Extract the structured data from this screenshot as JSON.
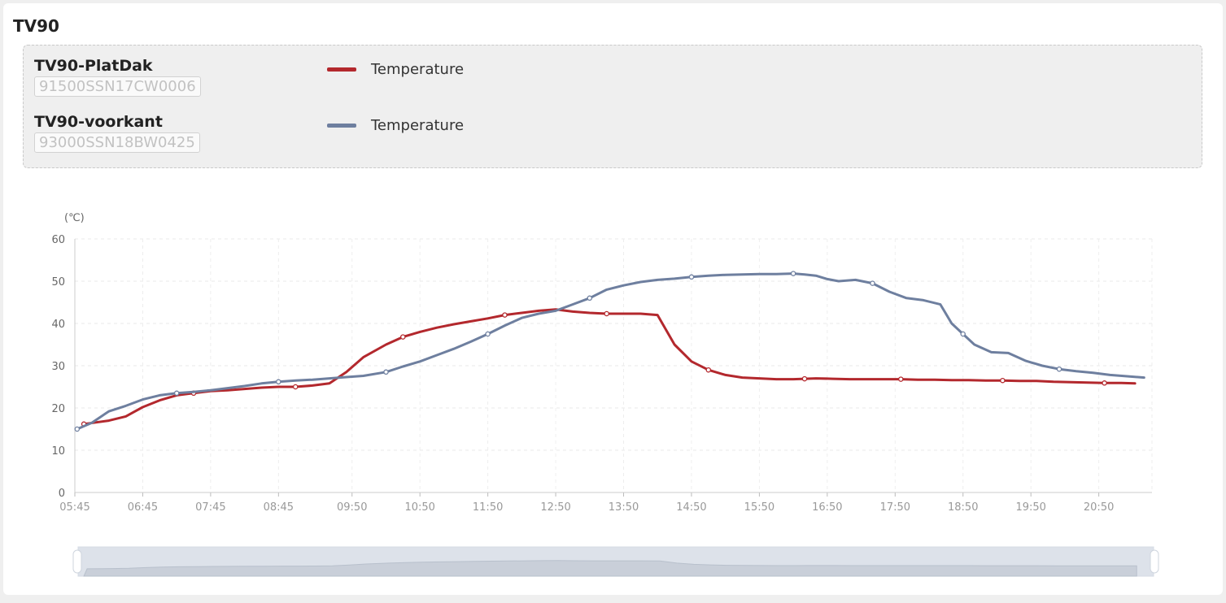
{
  "card": {
    "title": "TV90"
  },
  "devices": [
    {
      "name": "TV90-PlatDak",
      "serial": "91500SSN17CW0006",
      "legend_label": "Temperature",
      "color": "#b3282d"
    },
    {
      "name": "TV90-voorkant",
      "serial": "93000SSN18BW0425",
      "legend_label": "Temperature",
      "color": "#6e7f9f"
    }
  ],
  "chart_data": {
    "type": "line",
    "ylabel": "(℃)",
    "ylim": [
      0,
      60
    ],
    "yticks": [
      0,
      10,
      20,
      30,
      40,
      50,
      60
    ],
    "x_tick_labels": [
      "05:45",
      "06:45",
      "07:45",
      "08:45",
      "09:50",
      "10:50",
      "11:50",
      "12:50",
      "13:50",
      "14:50",
      "15:50",
      "16:50",
      "17:50",
      "18:50",
      "19:50",
      "20:50"
    ],
    "grid": true,
    "x_unit": "minutes since 00:00",
    "xlim": [
      345,
      1297
    ],
    "series": [
      {
        "name": "TV90-PlatDak Temperature",
        "color": "#b3282d",
        "x": [
          353,
          375,
          390,
          405,
          420,
          435,
          450,
          465,
          480,
          495,
          510,
          525,
          540,
          555,
          570,
          585,
          600,
          620,
          635,
          650,
          665,
          680,
          695,
          710,
          725,
          740,
          755,
          770,
          785,
          800,
          815,
          830,
          845,
          860,
          875,
          890,
          905,
          920,
          935,
          950,
          965,
          980,
          990,
          1000,
          1015,
          1030,
          1045,
          1060,
          1075,
          1090,
          1105,
          1120,
          1135,
          1150,
          1165,
          1180,
          1195,
          1210,
          1225,
          1240,
          1255,
          1270,
          1282
        ],
        "values": [
          16.2,
          17.0,
          18.0,
          20.2,
          21.8,
          23.0,
          23.5,
          24.0,
          24.2,
          24.5,
          24.8,
          25.0,
          25.0,
          25.3,
          25.8,
          28.5,
          32.0,
          35.0,
          36.8,
          38.0,
          39.0,
          39.8,
          40.5,
          41.2,
          42.0,
          42.5,
          43.0,
          43.3,
          42.8,
          42.5,
          42.3,
          42.3,
          42.3,
          42.0,
          35.0,
          31.0,
          29.0,
          27.8,
          27.2,
          27.0,
          26.8,
          26.8,
          26.9,
          27.0,
          26.9,
          26.8,
          26.8,
          26.8,
          26.8,
          26.7,
          26.7,
          26.6,
          26.6,
          26.5,
          26.5,
          26.4,
          26.4,
          26.2,
          26.1,
          26.0,
          25.9,
          25.9,
          25.8
        ]
      },
      {
        "name": "TV90-voorkant Temperature",
        "color": "#6e7f9f",
        "x": [
          347,
          360,
          375,
          390,
          405,
          420,
          435,
          450,
          465,
          480,
          495,
          510,
          525,
          540,
          555,
          570,
          585,
          600,
          620,
          635,
          650,
          665,
          680,
          695,
          710,
          725,
          740,
          755,
          770,
          785,
          800,
          815,
          830,
          845,
          860,
          875,
          890,
          905,
          920,
          935,
          950,
          965,
          980,
          990,
          1000,
          1010,
          1020,
          1035,
          1050,
          1065,
          1080,
          1095,
          1110,
          1120,
          1130,
          1140,
          1155,
          1170,
          1185,
          1200,
          1215,
          1230,
          1245,
          1260,
          1275,
          1290
        ],
        "values": [
          15.0,
          16.5,
          19.2,
          20.5,
          22.0,
          23.0,
          23.5,
          23.8,
          24.2,
          24.7,
          25.2,
          25.8,
          26.2,
          26.5,
          26.7,
          27.0,
          27.3,
          27.6,
          28.5,
          29.8,
          31.0,
          32.5,
          34.0,
          35.7,
          37.5,
          39.5,
          41.3,
          42.3,
          43.0,
          44.5,
          46.0,
          48.0,
          49.0,
          49.8,
          50.3,
          50.6,
          51.0,
          51.3,
          51.5,
          51.6,
          51.7,
          51.7,
          51.8,
          51.6,
          51.3,
          50.5,
          50.0,
          50.3,
          49.5,
          47.5,
          46.0,
          45.5,
          44.5,
          40.0,
          37.5,
          35.0,
          33.2,
          33.0,
          31.2,
          30.0,
          29.2,
          28.7,
          28.3,
          27.8,
          27.5,
          27.2
        ]
      }
    ]
  }
}
